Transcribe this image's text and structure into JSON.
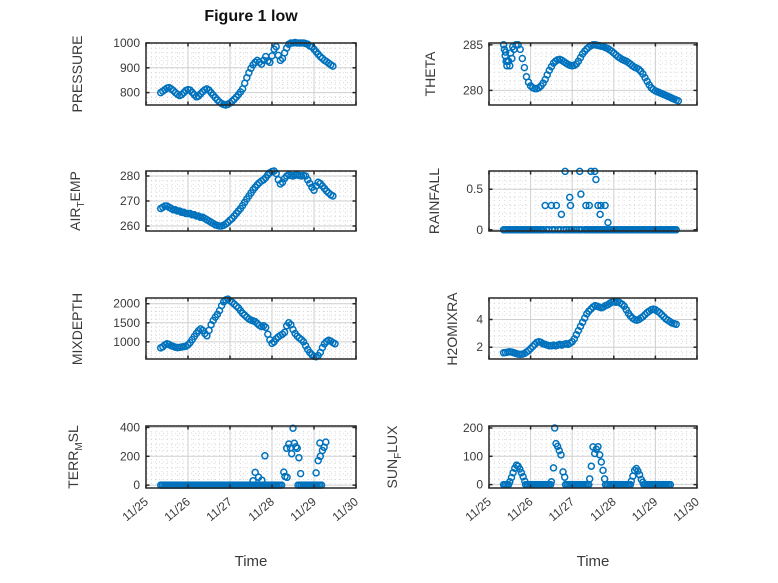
{
  "figure": {
    "title": "Figure 1 low",
    "marker_color": "#0072BD",
    "axis_color": "#262626",
    "major_grid_color": "#cfcfcf",
    "minor_grid_color": "#dadada",
    "tick_text_color": "#3a3a3a",
    "background": "#ffffff"
  },
  "x_axis": {
    "label": "Time",
    "tick_labels": [
      "11/25",
      "11/26",
      "11/27",
      "11/28",
      "11/29",
      "11/30"
    ],
    "tick_values": [
      0,
      1,
      2,
      3,
      4,
      5
    ],
    "minor_step": 0.125,
    "xlim": [
      0,
      5
    ]
  },
  "chart_data": [
    {
      "name": "pressure",
      "type": "scatter",
      "col": 0,
      "row": 0,
      "ylabel": "PRESSURE",
      "ylim": [
        750,
        1000
      ],
      "yticks": [
        800,
        900,
        1000
      ],
      "minor_step": 20,
      "series": {
        "x0": 0.35,
        "dx": 0.05,
        "values": [
          800,
          806,
          812,
          818,
          820,
          815,
          808,
          800,
          793,
          788,
          792,
          800,
          808,
          812,
          810,
          801,
          791,
          783,
          786,
          795,
          804,
          811,
          815,
          810,
          800,
          790,
          780,
          770,
          762,
          756,
          752,
          750,
          753,
          758,
          765,
          773,
          782,
          792,
          803,
          815,
          838,
          860,
          880,
          898,
          912,
          922,
          930,
          922,
          915,
          930,
          945,
          928,
          922,
          948,
          975,
          985,
          950,
          930,
          938,
          960,
          980,
          995,
          1000,
          1000,
          1002,
          1000,
          1000,
          1000,
          1000,
          998,
          995,
          988,
          985,
          975,
          965,
          955,
          945,
          938,
          930,
          925,
          918,
          912,
          907
        ]
      }
    },
    {
      "name": "theta",
      "type": "scatter",
      "col": 1,
      "row": 0,
      "ylabel": "THETA",
      "ylim": [
        278.4,
        285.2
      ],
      "yticks": [
        280,
        285
      ],
      "minor_step": 1,
      "series": {
        "x0": 0.35,
        "dx": 0.05,
        "values": [
          285,
          284.2,
          283.2,
          282.7,
          283.5,
          284.5,
          285,
          285,
          284.5,
          283.5,
          282.5,
          281.5,
          280.9,
          280.5,
          280.3,
          280.2,
          280.2,
          280.3,
          280.5,
          280.8,
          281.2,
          281.7,
          282.2,
          282.6,
          283,
          283.2,
          283.35,
          283.4,
          283.3,
          283.15,
          283,
          282.85,
          282.75,
          282.7,
          282.75,
          282.9,
          283.2,
          283.6,
          284,
          284.3,
          284.55,
          284.75,
          284.9,
          285,
          285,
          284.95,
          284.9,
          284.85,
          284.8,
          284.7,
          284.6,
          284.45,
          284.3,
          284.1,
          283.9,
          283.7,
          283.55,
          283.4,
          283.3,
          283.2,
          283.05,
          282.9,
          282.7,
          282.55,
          282.45,
          282.3,
          282.1,
          281.8,
          281.4,
          281,
          280.6,
          280.3,
          280.1,
          279.95,
          279.85,
          279.75,
          279.65,
          279.55,
          279.45,
          279.35,
          279.25,
          279.15,
          279.05,
          278.95,
          278.85
        ]
      },
      "extra_points": [
        [
          0.37,
          284.5
        ],
        [
          0.39,
          283.8
        ],
        [
          0.41,
          283.2
        ],
        [
          0.43,
          282.7
        ],
        [
          0.47,
          283.2
        ],
        [
          0.52,
          284.1
        ],
        [
          0.57,
          284.8
        ]
      ]
    },
    {
      "name": "air-temp",
      "type": "scatter",
      "col": 0,
      "row": 1,
      "ylabel": "AIR_{T}EMP",
      "ylim": [
        258,
        282
      ],
      "yticks": [
        260,
        270,
        280
      ],
      "minor_step": 2,
      "series": {
        "x0": 0.35,
        "dx": 0.05,
        "values": [
          267,
          267.5,
          268,
          268,
          267.5,
          267,
          266.5,
          266.5,
          266,
          266,
          265.5,
          265.5,
          265,
          265,
          265,
          264.5,
          264.5,
          264,
          264,
          263.5,
          263.5,
          263,
          262.5,
          262,
          261.5,
          261,
          260.5,
          260.2,
          260,
          260,
          260.3,
          260.8,
          261.5,
          262.3,
          263,
          264,
          265,
          266,
          267,
          268.2,
          269.5,
          270.8,
          272,
          273.2,
          274.5,
          275.5,
          276.5,
          277.3,
          278,
          278.5,
          279.3,
          280.5,
          281.3,
          281.8,
          282,
          281,
          278.5,
          276.8,
          277.5,
          279,
          280,
          280.5,
          280.2,
          280,
          280.3,
          280.5,
          280.2,
          280,
          280.2,
          280,
          278.5,
          277,
          275.5,
          274.3,
          276,
          277.5,
          277,
          276,
          275,
          274,
          273.2,
          272.5,
          272
        ]
      }
    },
    {
      "name": "rainfall",
      "type": "scatter",
      "col": 1,
      "row": 1,
      "ylabel": "RAINFALL",
      "ylim": [
        -0.015,
        0.725
      ],
      "yticks": [
        0,
        0.5
      ],
      "minor_step": 0.1,
      "zero_runs": [
        [
          0.35,
          1.32
        ],
        [
          2.3,
          4.5
        ]
      ],
      "zero_step": 0.04,
      "sparse_zeros": [
        1.38,
        1.44,
        1.52,
        1.58,
        1.66,
        1.72,
        1.8,
        1.86,
        1.92,
        1.98,
        2.04,
        2.1,
        2.16,
        2.22
      ],
      "points": [
        [
          1.35,
          0.3
        ],
        [
          1.5,
          0.3
        ],
        [
          1.62,
          0.3
        ],
        [
          1.74,
          0.19
        ],
        [
          1.83,
          0.72
        ],
        [
          1.94,
          0.4
        ],
        [
          1.96,
          0.3
        ],
        [
          2.18,
          0.72
        ],
        [
          2.21,
          0.44
        ],
        [
          2.33,
          0.3
        ],
        [
          2.41,
          0.3
        ],
        [
          2.45,
          0.72
        ],
        [
          2.54,
          0.72
        ],
        [
          2.57,
          0.62
        ],
        [
          2.62,
          0.3
        ],
        [
          2.67,
          0.19
        ],
        [
          2.69,
          0.3
        ],
        [
          2.79,
          0.3
        ],
        [
          2.86,
          0.09
        ]
      ]
    },
    {
      "name": "mixdepth",
      "type": "scatter",
      "col": 0,
      "row": 2,
      "ylabel": "MIXDEPTH",
      "ylim": [
        550,
        2150
      ],
      "yticks": [
        1000,
        1500,
        2000
      ],
      "minor_step": 100,
      "series": {
        "x0": 0.35,
        "dx": 0.05,
        "values": [
          840,
          870,
          920,
          950,
          930,
          900,
          880,
          860,
          850,
          855,
          865,
          875,
          885,
          920,
          980,
          1060,
          1140,
          1220,
          1290,
          1340,
          1300,
          1220,
          1160,
          1300,
          1450,
          1560,
          1650,
          1720,
          1820,
          1950,
          2050,
          2100,
          2120,
          2080,
          2040,
          1990,
          1940,
          1890,
          1820,
          1750,
          1700,
          1650,
          1600,
          1570,
          1550,
          1530,
          1480,
          1430,
          1400,
          1420,
          1380,
          1200,
          1050,
          960,
          1000,
          1080,
          1130,
          1170,
          1200,
          1250,
          1420,
          1500,
          1450,
          1320,
          1220,
          1150,
          1100,
          1060,
          1000,
          900,
          800,
          720,
          660,
          620,
          610,
          640,
          720,
          850,
          950,
          1010,
          1040,
          1020,
          980,
          950
        ]
      }
    },
    {
      "name": "h2omixra",
      "type": "scatter",
      "col": 1,
      "row": 2,
      "ylabel": "H2OMIXRA",
      "ylim": [
        1.15,
        5.55
      ],
      "yticks": [
        2,
        4
      ],
      "minor_step": 0.4,
      "series": {
        "x0": 0.35,
        "dx": 0.05,
        "values": [
          1.6,
          1.62,
          1.65,
          1.68,
          1.65,
          1.6,
          1.55,
          1.5,
          1.48,
          1.5,
          1.55,
          1.65,
          1.75,
          1.9,
          2.05,
          2.2,
          2.35,
          2.4,
          2.35,
          2.25,
          2.2,
          2.15,
          2.1,
          2.1,
          2.15,
          2.1,
          2.15,
          2.2,
          2.15,
          2.2,
          2.25,
          2.2,
          2.3,
          2.4,
          2.6,
          2.9,
          3.2,
          3.5,
          3.8,
          4.1,
          4.4,
          4.6,
          4.75,
          4.9,
          5.0,
          4.95,
          4.9,
          4.85,
          4.9,
          5.0,
          5.05,
          5.15,
          5.25,
          5.3,
          5.25,
          5.3,
          5.2,
          5.1,
          4.95,
          4.7,
          4.45,
          4.25,
          4.1,
          4.0,
          3.95,
          4.0,
          4.1,
          4.2,
          4.35,
          4.5,
          4.6,
          4.7,
          4.75,
          4.7,
          4.6,
          4.5,
          4.35,
          4.2,
          4.05,
          3.95,
          3.85,
          3.75,
          3.7,
          3.65
        ]
      }
    },
    {
      "name": "terr-msl",
      "type": "scatter",
      "col": 0,
      "row": 3,
      "ylabel": "TERR_{M}SL",
      "ylim": [
        -20,
        410
      ],
      "yticks": [
        0,
        200,
        400
      ],
      "minor_step": 40,
      "zero_runs": [
        [
          0.35,
          3.26
        ],
        [
          3.62,
          4.2
        ]
      ],
      "zero_step": 0.04,
      "sparse_zeros": [],
      "points": [
        [
          2.55,
          30
        ],
        [
          2.6,
          88
        ],
        [
          2.68,
          55
        ],
        [
          2.76,
          34
        ],
        [
          2.83,
          203
        ],
        [
          3.28,
          90
        ],
        [
          3.31,
          60
        ],
        [
          3.35,
          255
        ],
        [
          3.36,
          54
        ],
        [
          3.4,
          285
        ],
        [
          3.44,
          258
        ],
        [
          3.47,
          218
        ],
        [
          3.5,
          395
        ],
        [
          3.53,
          290
        ],
        [
          3.57,
          265
        ],
        [
          3.6,
          255
        ],
        [
          3.64,
          190
        ],
        [
          3.68,
          80
        ],
        [
          4.05,
          85
        ],
        [
          4.1,
          170
        ],
        [
          4.14,
          292
        ],
        [
          4.15,
          200
        ],
        [
          4.2,
          240
        ],
        [
          4.24,
          262
        ],
        [
          4.28,
          298
        ]
      ]
    },
    {
      "name": "sun-flux",
      "type": "scatter",
      "col": 1,
      "row": 3,
      "ylabel": "SUN_{F}LUX",
      "ylim": [
        -12,
        207
      ],
      "yticks": [
        0,
        100,
        200
      ],
      "minor_step": 20,
      "zero_runs": [
        [
          0.35,
          0.5
        ],
        [
          0.88,
          1.48
        ],
        [
          1.84,
          2.4
        ],
        [
          2.8,
          3.4
        ],
        [
          3.72,
          4.38
        ]
      ],
      "zero_step": 0.04,
      "sparse_zeros": [],
      "points": [
        [
          0.5,
          10
        ],
        [
          0.54,
          25
        ],
        [
          0.58,
          42
        ],
        [
          0.62,
          58
        ],
        [
          0.66,
          69
        ],
        [
          0.7,
          65
        ],
        [
          0.74,
          55
        ],
        [
          0.78,
          42
        ],
        [
          0.82,
          28
        ],
        [
          0.86,
          12
        ],
        [
          1.5,
          10
        ],
        [
          1.55,
          59
        ],
        [
          1.58,
          200
        ],
        [
          1.61,
          145
        ],
        [
          1.65,
          135
        ],
        [
          1.69,
          120
        ],
        [
          1.73,
          105
        ],
        [
          1.78,
          45
        ],
        [
          1.82,
          26
        ],
        [
          2.42,
          20
        ],
        [
          2.46,
          65
        ],
        [
          2.5,
          133
        ],
        [
          2.54,
          110
        ],
        [
          2.58,
          125
        ],
        [
          2.62,
          134
        ],
        [
          2.66,
          105
        ],
        [
          2.7,
          80
        ],
        [
          2.74,
          50
        ],
        [
          2.78,
          20
        ],
        [
          3.42,
          12
        ],
        [
          3.46,
          30
        ],
        [
          3.5,
          50
        ],
        [
          3.54,
          57
        ],
        [
          3.58,
          48
        ],
        [
          3.62,
          35
        ],
        [
          3.66,
          18
        ],
        [
          3.7,
          8
        ]
      ]
    }
  ]
}
